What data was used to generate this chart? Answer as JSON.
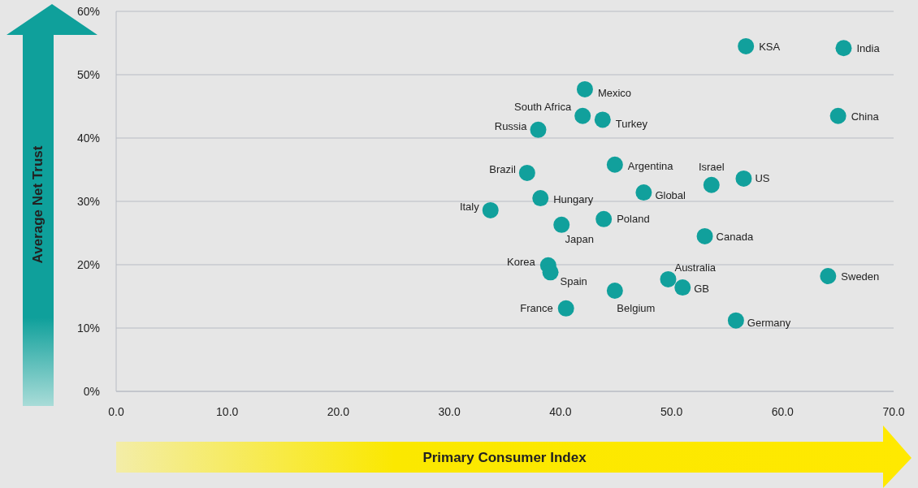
{
  "chart_data": {
    "type": "scatter",
    "xlabel": "Primary Consumer Index",
    "ylabel": "Average Net Trust",
    "xlim": [
      0,
      70
    ],
    "xticks": [
      {
        "value": 0,
        "label": "0.0"
      },
      {
        "value": 10,
        "label": "10.0"
      },
      {
        "value": 20,
        "label": "20.0"
      },
      {
        "value": 30,
        "label": "30.0"
      },
      {
        "value": 40,
        "label": "40.0"
      },
      {
        "value": 50,
        "label": "50.0"
      },
      {
        "value": 60,
        "label": "60.0"
      },
      {
        "value": 70,
        "label": "70.0"
      }
    ],
    "ylim": [
      0,
      60
    ],
    "yticks": [
      {
        "value": 0,
        "label": "0%"
      },
      {
        "value": 10,
        "label": "10%"
      },
      {
        "value": 20,
        "label": "20%"
      },
      {
        "value": 30,
        "label": "30%"
      },
      {
        "value": 40,
        "label": "40%"
      },
      {
        "value": 50,
        "label": "50%"
      },
      {
        "value": 60,
        "label": "60%"
      }
    ],
    "grid": "y",
    "marker": "circle",
    "legend": false,
    "series": [
      {
        "name": "KSA",
        "color": "#11a09c",
        "x": [
          56.7
        ],
        "values": [
          54.5
        ]
      },
      {
        "name": "India",
        "color": "#11a09c",
        "x": [
          65.5
        ],
        "values": [
          54.2
        ]
      },
      {
        "name": "Mexico",
        "color": "#11a09c",
        "x": [
          42.2
        ],
        "values": [
          47.7
        ]
      },
      {
        "name": "South Africa",
        "color": "#11a09c",
        "x": [
          42.0
        ],
        "values": [
          43.5
        ]
      },
      {
        "name": "Turkey",
        "color": "#11a09c",
        "x": [
          43.8
        ],
        "values": [
          42.9
        ]
      },
      {
        "name": "China",
        "color": "#11a09c",
        "x": [
          65.0
        ],
        "values": [
          43.5
        ]
      },
      {
        "name": "Russia",
        "color": "#11a09c",
        "x": [
          38.0
        ],
        "values": [
          41.3
        ]
      },
      {
        "name": "Argentina",
        "color": "#11a09c",
        "x": [
          44.9
        ],
        "values": [
          35.8
        ]
      },
      {
        "name": "Brazil",
        "color": "#11a09c",
        "x": [
          37.0
        ],
        "values": [
          34.5
        ]
      },
      {
        "name": "Israel",
        "color": "#11a09c",
        "x": [
          53.6
        ],
        "values": [
          32.6
        ]
      },
      {
        "name": "US",
        "color": "#11a09c",
        "x": [
          56.5
        ],
        "values": [
          33.6
        ]
      },
      {
        "name": "Global",
        "color": "#11a09c",
        "x": [
          47.5
        ],
        "values": [
          31.4
        ]
      },
      {
        "name": "Hungary",
        "color": "#11a09c",
        "x": [
          38.2
        ],
        "values": [
          30.5
        ]
      },
      {
        "name": "Italy",
        "color": "#11a09c",
        "x": [
          33.7
        ],
        "values": [
          28.6
        ]
      },
      {
        "name": "Japan",
        "color": "#11a09c",
        "x": [
          40.1
        ],
        "values": [
          26.3
        ]
      },
      {
        "name": "Poland",
        "color": "#11a09c",
        "x": [
          43.9
        ],
        "values": [
          27.2
        ]
      },
      {
        "name": "Canada",
        "color": "#11a09c",
        "x": [
          53.0
        ],
        "values": [
          24.5
        ]
      },
      {
        "name": "Korea",
        "color": "#11a09c",
        "x": [
          38.9
        ],
        "values": [
          19.9
        ]
      },
      {
        "name": "Spain",
        "color": "#11a09c",
        "x": [
          39.1
        ],
        "values": [
          18.8
        ]
      },
      {
        "name": "Australia",
        "color": "#11a09c",
        "x": [
          49.7
        ],
        "values": [
          17.7
        ]
      },
      {
        "name": "GB",
        "color": "#11a09c",
        "x": [
          51.0
        ],
        "values": [
          16.4
        ]
      },
      {
        "name": "Sweden",
        "color": "#11a09c",
        "x": [
          64.1
        ],
        "values": [
          18.2
        ]
      },
      {
        "name": "Belgium",
        "color": "#11a09c",
        "x": [
          44.9
        ],
        "values": [
          15.9
        ]
      },
      {
        "name": "France",
        "color": "#11a09c",
        "x": [
          40.5
        ],
        "values": [
          13.1
        ]
      },
      {
        "name": "Germany",
        "color": "#11a09c",
        "x": [
          55.8
        ],
        "values": [
          11.2
        ]
      }
    ]
  }
}
